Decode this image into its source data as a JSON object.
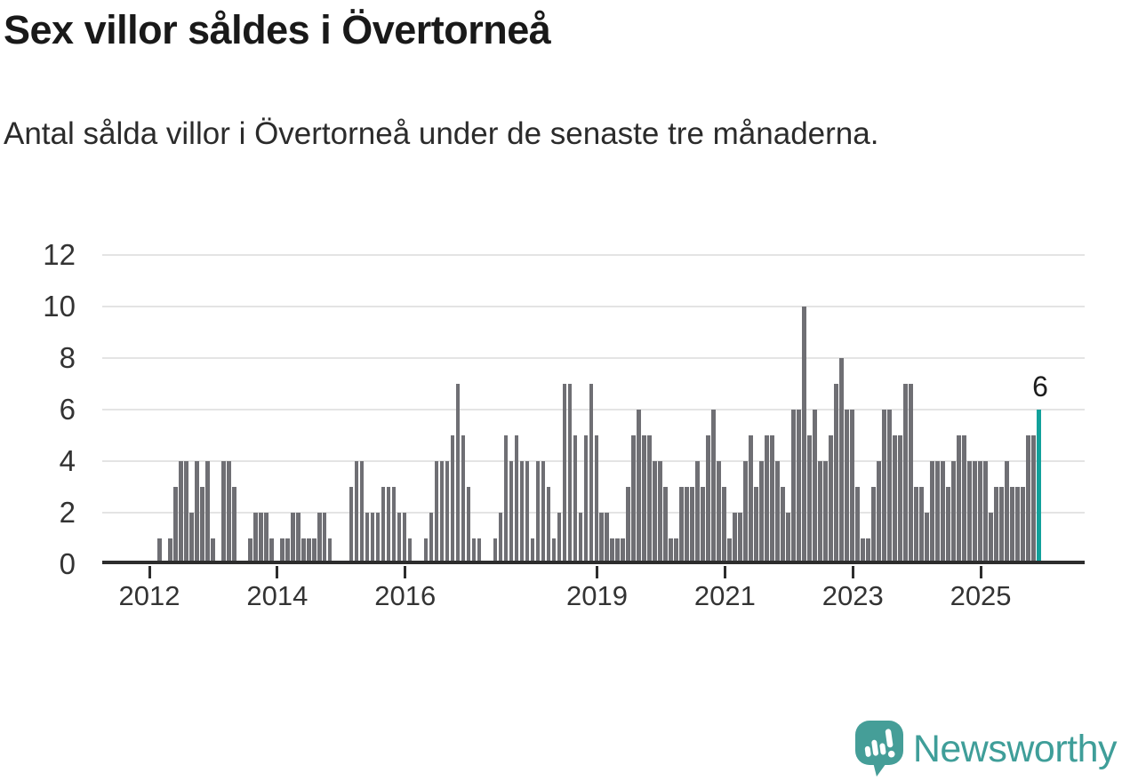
{
  "title": "Sex villor såldes i Övertorneå",
  "subtitle": "Antal sålda villor i Övertorneå under de senaste tre månaderna.",
  "logo": {
    "wordmark": "Newsworthy",
    "icon": "newsworthy-speech-bubble-bar-chart-icon"
  },
  "colors": {
    "bar": "#6f6f74",
    "highlight": "#12a19b",
    "logo_teal": "#3f9e99",
    "icon_teal": "#459e98",
    "grid": "#e4e4e4",
    "axis": "#2d2d2d",
    "text": "#1d1d1d"
  },
  "chart_data": {
    "type": "bar",
    "title": "Sex villor såldes i Övertorneå",
    "subtitle": "Antal sålda villor i Övertorneå under de senaste tre månaderna.",
    "unit": "sålda villor, rullande 3 månader",
    "start_month": "2012-01",
    "end_month": "2025-11",
    "ylim": [
      0,
      12
    ],
    "y_ticks": [
      0,
      2,
      4,
      6,
      8,
      10,
      12
    ],
    "grid": true,
    "x_ticks": [
      {
        "label": "2012",
        "month_index": 0
      },
      {
        "label": "2014",
        "month_index": 24
      },
      {
        "label": "2016",
        "month_index": 48
      },
      {
        "label": "2019",
        "month_index": 84
      },
      {
        "label": "2021",
        "month_index": 108
      },
      {
        "label": "2023",
        "month_index": 132
      },
      {
        "label": "2025",
        "month_index": 156
      }
    ],
    "values": [
      0,
      1,
      0,
      1,
      3,
      4,
      4,
      2,
      4,
      3,
      4,
      1,
      0,
      4,
      4,
      3,
      0,
      0,
      1,
      2,
      2,
      2,
      1,
      0,
      1,
      1,
      2,
      2,
      1,
      1,
      1,
      2,
      2,
      1,
      0,
      0,
      0,
      3,
      4,
      4,
      2,
      2,
      2,
      3,
      3,
      3,
      2,
      2,
      1,
      0,
      0,
      1,
      2,
      4,
      4,
      4,
      5,
      7,
      5,
      3,
      1,
      1,
      0,
      0,
      1,
      2,
      5,
      4,
      5,
      4,
      4,
      1,
      4,
      4,
      3,
      1,
      2,
      7,
      7,
      5,
      2,
      5,
      7,
      5,
      2,
      2,
      1,
      1,
      1,
      3,
      5,
      6,
      5,
      5,
      4,
      4,
      3,
      1,
      1,
      3,
      3,
      3,
      4,
      3,
      5,
      6,
      4,
      3,
      1,
      2,
      2,
      4,
      5,
      3,
      4,
      5,
      5,
      4,
      3,
      2,
      6,
      6,
      10,
      5,
      6,
      4,
      4,
      5,
      7,
      8,
      6,
      6,
      3,
      1,
      1,
      3,
      4,
      6,
      6,
      5,
      5,
      7,
      7,
      3,
      3,
      2,
      4,
      4,
      4,
      3,
      4,
      5,
      5,
      4,
      4,
      4,
      4,
      2,
      3,
      3,
      4,
      3,
      3,
      3,
      5,
      5,
      6
    ],
    "highlight_last": true,
    "annotation": "6",
    "legend": null
  }
}
